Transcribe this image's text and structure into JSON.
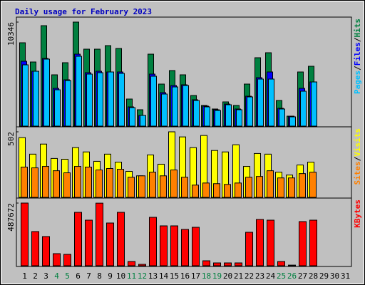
{
  "chart_data": [
    {
      "type": "bar",
      "title": "Daily usage for February 2023",
      "title_color": "#0000c0",
      "ylim": [
        0,
        10346
      ],
      "yticks": [
        10346
      ],
      "legend_separator": "/",
      "series": [
        {
          "name": "Hits",
          "color": "#008040",
          "values": [
            8291,
            6377,
            9991,
            5102,
            6307,
            10346,
            7653,
            7653,
            8007,
            7724,
            2693,
            1630,
            7157,
            4181,
            5527,
            5102,
            3047,
            2055,
            1701,
            2409,
            2055,
            4181,
            6803,
            7299,
            2551,
            992,
            5385,
            5952,
            null,
            null,
            null
          ]
        },
        {
          "name": "Files",
          "color": "#0000ff",
          "values": [
            6448,
            5456,
            6732,
            3756,
            4606,
            7157,
            5315,
            5456,
            5385,
            5385,
            1913,
            1063,
            5173,
            3330,
            4039,
            4110,
            2622,
            1984,
            1630,
            2197,
            1701,
            2976,
            4818,
            5385,
            1772,
            992,
            3756,
            4393,
            null,
            null,
            null
          ]
        },
        {
          "name": "Pages",
          "color": "#00c0ff",
          "values": [
            6094,
            5456,
            6661,
            3614,
            4535,
            6944,
            5173,
            5315,
            5385,
            5244,
            1842,
            1063,
            4960,
            3189,
            3897,
            4039,
            2551,
            1913,
            1559,
            2126,
            1630,
            2905,
            4677,
            4677,
            1701,
            921,
            3472,
            4393,
            null,
            null,
            null
          ]
        }
      ]
    },
    {
      "type": "bar",
      "ylim": [
        0,
        502
      ],
      "yticks": [
        502
      ],
      "series": [
        {
          "name": "Visits",
          "color": "#ffff00",
          "values": [
            458,
            331,
            408,
            298,
            292,
            381,
            348,
            276,
            331,
            270,
            199,
            165,
            325,
            254,
            502,
            463,
            381,
            474,
            359,
            348,
            403,
            237,
            336,
            331,
            193,
            171,
            248,
            270,
            null,
            null,
            null
          ]
        },
        {
          "name": "Sites",
          "color": "#ff8000",
          "values": [
            232,
            226,
            237,
            204,
            188,
            237,
            232,
            210,
            221,
            215,
            154,
            165,
            193,
            165,
            210,
            154,
            94,
            110,
            105,
            99,
            110,
            154,
            160,
            204,
            149,
            149,
            182,
            193,
            null,
            null,
            null
          ]
        }
      ]
    },
    {
      "type": "bar",
      "ylim": [
        0,
        487672
      ],
      "yticks": [
        487672
      ],
      "categories": [
        "1",
        "2",
        "3",
        "4",
        "5",
        "6",
        "7",
        "8",
        "9",
        "10",
        "11",
        "12",
        "13",
        "14",
        "15",
        "16",
        "17",
        "18",
        "19",
        "20",
        "21",
        "22",
        "23",
        "24",
        "25",
        "26",
        "27",
        "28",
        "29",
        "30",
        "31"
      ],
      "category_colors": [
        "#000000",
        "#000000",
        "#000000",
        "#008040",
        "#008040",
        "#000000",
        "#000000",
        "#000000",
        "#000000",
        "#000000",
        "#008040",
        "#008040",
        "#000000",
        "#000000",
        "#000000",
        "#000000",
        "#000000",
        "#008040",
        "#008040",
        "#000000",
        "#000000",
        "#000000",
        "#000000",
        "#000000",
        "#008040",
        "#008040",
        "#000000",
        "#000000",
        "#000000",
        "#000000",
        "#000000"
      ],
      "series": [
        {
          "name": "KBytes",
          "color": "#ff0000",
          "values": [
            487672,
            266016,
            227222,
            94214,
            88672,
            415650,
            354688,
            487000,
            332520,
            415650,
            33252,
            11084,
            376856,
            310352,
            310352,
            282642,
            299268,
            38794,
            22168,
            22168,
            22168,
            260474,
            360230,
            354688,
            33252,
            5000,
            343604,
            354688,
            null,
            null,
            null
          ]
        }
      ]
    }
  ]
}
